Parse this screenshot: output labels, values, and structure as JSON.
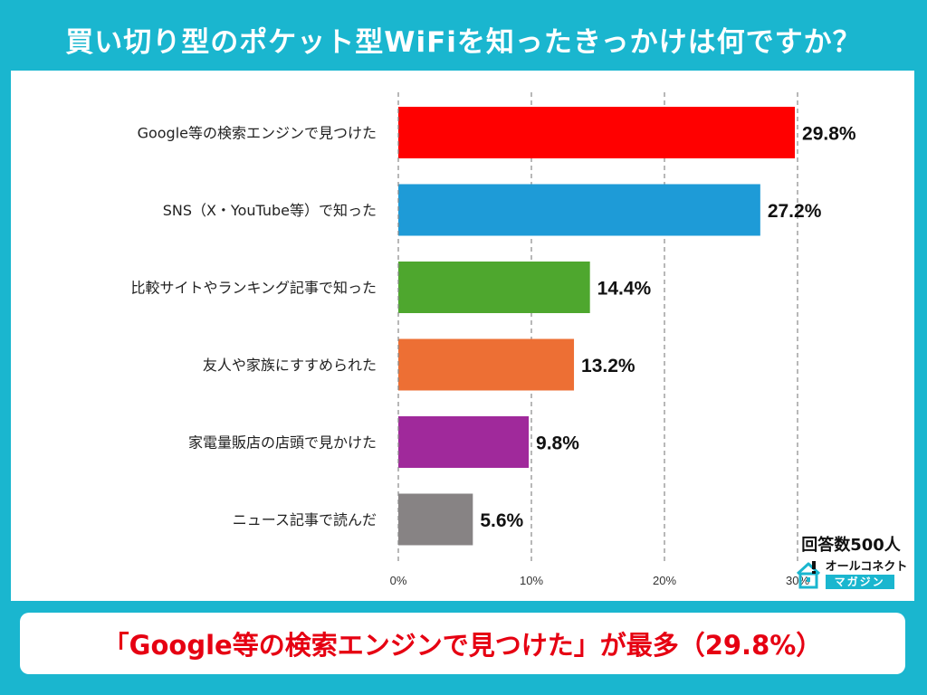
{
  "header": {
    "title": "買い切り型のポケット型WiFiを知ったきっかけは何ですか？"
  },
  "badge": {
    "respondents": "回答数500人",
    "brand_top": "オールコネクト",
    "brand_bottom": "マガジン"
  },
  "conclusion": {
    "text": "「Google等の検索エンジンで見つけた」が最多（29.8%）"
  },
  "colors": {
    "background": "#1ab6cf",
    "accent_red": "#e60012"
  },
  "chart_data": {
    "type": "bar",
    "orientation": "horizontal",
    "title": "",
    "xlabel": "",
    "ylabel": "",
    "xlim": [
      0,
      30
    ],
    "grid": true,
    "ticks": [
      "0%",
      "10%",
      "20%",
      "30%"
    ],
    "tick_values": [
      0,
      10,
      20,
      30
    ],
    "categories": [
      "Google等の検索エンジンで見つけた",
      "SNS（X・YouTube等）で知った",
      "比較サイトやランキング記事で知った",
      "友人や家族にすすめられた",
      "家電量販店の店頭で見かけた",
      "ニュース記事で読んだ"
    ],
    "values": [
      29.8,
      27.2,
      14.4,
      13.2,
      9.8,
      5.6
    ],
    "value_labels": [
      "29.8%",
      "27.2%",
      "14.4%",
      "13.2%",
      "9.8%",
      "5.6%"
    ],
    "bar_colors": [
      "#ff0000",
      "#1e9bd7",
      "#4ea72e",
      "#ed6f34",
      "#a0299b",
      "#878384"
    ]
  }
}
